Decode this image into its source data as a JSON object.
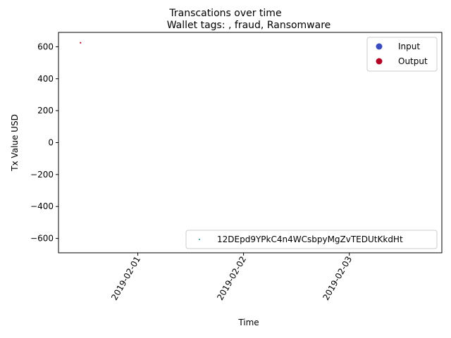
{
  "chart_data": {
    "type": "scatter",
    "suptitle": "Transcations over time",
    "title": "Wallet tags: , fraud, Ransomware",
    "xlabel": "Time",
    "ylabel": "Tx Value USD",
    "xlim": [
      "2019-01-31 06:00",
      "2019-02-03 21:00"
    ],
    "ylim": [
      -690,
      690
    ],
    "x_ticks": [
      "2019-02-01",
      "2019-02-02",
      "2019-02-03"
    ],
    "y_ticks": [
      600,
      400,
      200,
      0,
      -200,
      -400,
      -600
    ],
    "y_tick_labels": [
      "600",
      "400",
      "200",
      "0",
      "−200",
      "−400",
      "−600"
    ],
    "grid": false,
    "series": [
      {
        "name": "Input",
        "color": "#3b4cc0",
        "points": []
      },
      {
        "name": "Output",
        "color": "#b40426",
        "points": [
          {
            "x": "2019-01-31 11:00",
            "y": 625
          }
        ]
      }
    ],
    "legend_top_right": {
      "placement": "upper right",
      "entries": [
        {
          "label": "Input",
          "color": "#3b4cc0"
        },
        {
          "label": "Output",
          "color": "#b40426"
        }
      ]
    },
    "legend_bottom_right": {
      "placement": "lower right",
      "entries": [
        {
          "label": "12DEpd9YPkC4n4WCsbpyMgZvTEDUtKkdHt",
          "color": "#1f8a8a"
        }
      ]
    }
  }
}
